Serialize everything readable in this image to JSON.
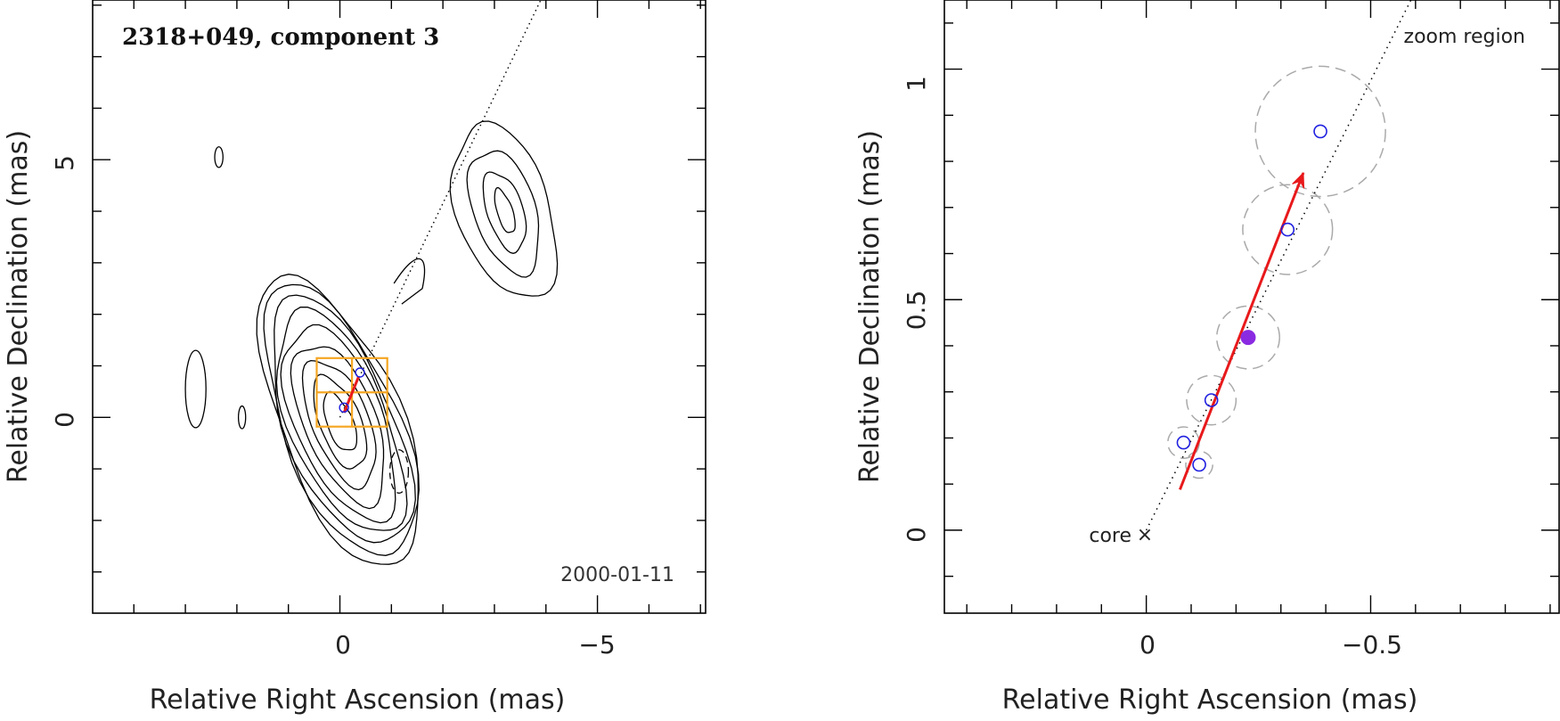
{
  "colors": {
    "axis": "#000000",
    "contour": "#000000",
    "grid_box": "#f5a623",
    "arrow": "#e8191b",
    "component_circle": "#2020e0",
    "component_fill": "#8a2be2",
    "dashed_circle": "#aaaaaa"
  },
  "chart_data": [
    {
      "type": "contour",
      "panel": "left",
      "title": "2318+049, component 3",
      "epoch_label": "2000-01-11",
      "xlabel": "Relative Right Ascension (mas)",
      "ylabel": "Relative Declination (mas)",
      "xlim": [
        4.8,
        -7.1
      ],
      "ylim": [
        -3.8,
        8.1
      ],
      "x_ticks": [
        0,
        -5
      ],
      "x_tick_labels": [
        "0",
        "−5"
      ],
      "y_ticks": [
        0,
        5
      ],
      "y_tick_labels": [
        "0",
        "5"
      ],
      "x_minor_step": 1,
      "y_minor_step": 1,
      "jet_axis_line": [
        [
          0.0,
          0.0
        ],
        [
          -3.9,
          8.1
        ]
      ],
      "core_contours": {
        "center": [
          0.0,
          -0.1
        ],
        "tilt_deg": -22,
        "semi_axes": [
          [
            0.25,
            0.6
          ],
          [
            0.4,
            0.95
          ],
          [
            0.55,
            1.3
          ],
          [
            0.7,
            1.65
          ],
          [
            0.85,
            2.0
          ],
          [
            0.95,
            2.3
          ],
          [
            1.05,
            2.55
          ],
          [
            1.12,
            2.8
          ],
          [
            1.17,
            3.0
          ]
        ]
      },
      "jet_contours": {
        "center": [
          -3.2,
          4.0
        ],
        "tilt_deg": -18,
        "semi_axes": [
          [
            0.15,
            0.45
          ],
          [
            0.35,
            0.8
          ],
          [
            0.6,
            1.25
          ],
          [
            0.9,
            1.75
          ]
        ]
      },
      "negative_contours": [
        {
          "center": [
            -1.15,
            -1.05
          ],
          "semi_axes": [
            0.18,
            0.42
          ]
        }
      ],
      "small_contours": [
        {
          "center": [
            2.8,
            0.55
          ],
          "semi_axes": [
            0.2,
            0.75
          ]
        },
        {
          "center": [
            1.9,
            0.0
          ],
          "semi_axes": [
            0.07,
            0.22
          ]
        },
        {
          "center": [
            2.35,
            5.05
          ],
          "semi_axes": [
            0.08,
            0.2
          ]
        }
      ],
      "zoom_box": {
        "ra_min": -0.92,
        "ra_max": 0.45,
        "dec_min": -0.18,
        "dec_max": 1.15
      },
      "components": [
        {
          "ra": -0.08,
          "dec": 0.19
        },
        {
          "ra": -0.39,
          "dec": 0.87
        }
      ],
      "arrow": {
        "from": [
          -0.08,
          0.09
        ],
        "to": [
          -0.36,
          0.78
        ]
      }
    },
    {
      "type": "scatter",
      "panel": "right",
      "xlabel": "Relative Right Ascension (mas)",
      "ylabel": "Relative Declination (mas)",
      "xlim": [
        0.45,
        -0.92
      ],
      "ylim": [
        -0.18,
        1.15
      ],
      "x_ticks": [
        0,
        -0.5
      ],
      "x_tick_labels": [
        "0",
        "−0.5"
      ],
      "y_ticks": [
        0,
        0.5,
        1
      ],
      "y_tick_labels": [
        "0",
        "0.5",
        "1"
      ],
      "x_minor_step": 0.1,
      "y_minor_step": 0.1,
      "corner_label": "zoom region",
      "core_label": "core",
      "core_marker": "×",
      "core_position": [
        0.0,
        0.0
      ],
      "jet_axis_line": [
        [
          0.0,
          0.0
        ],
        [
          -0.6,
          1.17
        ]
      ],
      "components": [
        {
          "ra": -0.083,
          "dec": 0.19,
          "size": 0.07
        },
        {
          "ra": -0.118,
          "dec": 0.142,
          "size": 0.06
        },
        {
          "ra": -0.145,
          "dec": 0.282,
          "size": 0.11
        },
        {
          "ra": -0.315,
          "dec": 0.652,
          "size": 0.2
        },
        {
          "ra": -0.388,
          "dec": 0.865,
          "size": 0.29
        }
      ],
      "mean_position": {
        "ra": -0.227,
        "dec": 0.418,
        "size": 0.14
      },
      "arrow": {
        "from": [
          -0.075,
          0.088
        ],
        "to": [
          -0.35,
          0.775
        ]
      }
    }
  ]
}
